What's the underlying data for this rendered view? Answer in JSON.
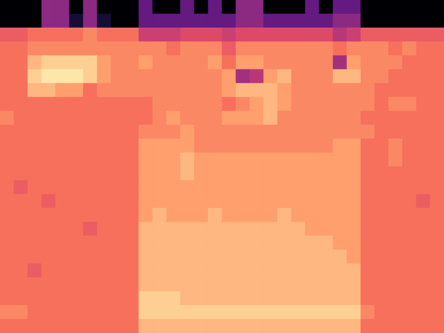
{
  "chart_data": {
    "type": "heatmap",
    "tick_labels": false,
    "grid": false,
    "zlim": [
      0,
      10
    ],
    "cells": [
      [
        0,
        0,
        0,
        4,
        4,
        0,
        4,
        0,
        0,
        0,
        3,
        0,
        0,
        3,
        0,
        3,
        0,
        4,
        4,
        0,
        0,
        0,
        3,
        0,
        3,
        3,
        0,
        0,
        0,
        0,
        0,
        0
      ],
      [
        0,
        0,
        0,
        4,
        4,
        1,
        4,
        1,
        0,
        0,
        3,
        3,
        3,
        3,
        3,
        3,
        3,
        4,
        4,
        3,
        3,
        3,
        3,
        3,
        4,
        4,
        0,
        0,
        0,
        0,
        0,
        0
      ],
      [
        6.5,
        6.5,
        7,
        7,
        7,
        7,
        7.5,
        7,
        7,
        7,
        5.5,
        5.5,
        5.5,
        6,
        6,
        6,
        5.5,
        6,
        6,
        6,
        6,
        6,
        6,
        6,
        5,
        5.5,
        6.5,
        6.5,
        6.5,
        6.5,
        6.5,
        6.5
      ],
      [
        7,
        7,
        7.5,
        7.5,
        7.5,
        7.5,
        7.5,
        7.5,
        7.5,
        7.5,
        7.5,
        7.5,
        7,
        7.5,
        7.5,
        7.5,
        6.5,
        7.5,
        7.5,
        7.5,
        7.5,
        7.5,
        7.5,
        7.5,
        7,
        7.5,
        7.5,
        7.5,
        7,
        7.5,
        7,
        7
      ],
      [
        7,
        7,
        8.5,
        9,
        9,
        9,
        9,
        8,
        7.5,
        7.5,
        8,
        7.5,
        7.5,
        7.5,
        7.5,
        8,
        7,
        8,
        8,
        7.5,
        7.5,
        7.5,
        7.5,
        7.5,
        4.5,
        8,
        7.5,
        7.5,
        7.5,
        7,
        7,
        7
      ],
      [
        7,
        7,
        9,
        9.5,
        9.5,
        9.5,
        9,
        8,
        7.5,
        7.5,
        7.5,
        7.5,
        7.5,
        7.5,
        7.5,
        7.5,
        8,
        4.5,
        5,
        8,
        8.5,
        7.5,
        7.5,
        7.5,
        8.5,
        8.5,
        7.5,
        7.5,
        7,
        7,
        7,
        7
      ],
      [
        7,
        7,
        8.5,
        8.5,
        8,
        8,
        7,
        7.5,
        7.5,
        7.5,
        7.5,
        7.5,
        7.5,
        7.5,
        7.5,
        7.5,
        8,
        8.5,
        8.5,
        8.5,
        8,
        7.5,
        7.5,
        7.5,
        7.5,
        7.5,
        7.5,
        7,
        7,
        7,
        7,
        7
      ],
      [
        7,
        7,
        7,
        7,
        7,
        7,
        7,
        7,
        7,
        7,
        7,
        7.5,
        7.5,
        7.5,
        7.5,
        7.5,
        7,
        7.5,
        8,
        8.5,
        8,
        7.5,
        7.5,
        7.5,
        7.5,
        7.5,
        7.5,
        7,
        7.5,
        7.5,
        7,
        7
      ],
      [
        7.5,
        7,
        7,
        7,
        7,
        7,
        7,
        7,
        7,
        7,
        7,
        7.5,
        8,
        7.5,
        7.5,
        7.5,
        8,
        8,
        8,
        8.5,
        7.5,
        7.5,
        7.5,
        7.5,
        7.5,
        7.5,
        7,
        7,
        7,
        7,
        7,
        7
      ],
      [
        7,
        7,
        7,
        7,
        7,
        7,
        7,
        7,
        7,
        7,
        7.5,
        7.5,
        7.5,
        8,
        7.5,
        7.5,
        7.5,
        7.5,
        7.5,
        7.5,
        7.5,
        7.5,
        7.5,
        7.5,
        7.5,
        7.5,
        7.5,
        7,
        7,
        7,
        7,
        7
      ],
      [
        7,
        7,
        7,
        7,
        7,
        7,
        7,
        7,
        7,
        7,
        8,
        8,
        8,
        8,
        7.5,
        7.5,
        7.5,
        7.5,
        7.5,
        7.5,
        7.5,
        7.5,
        7.5,
        7.5,
        8,
        8,
        7,
        7,
        7.5,
        7,
        7,
        7
      ],
      [
        7,
        7,
        7,
        7,
        7,
        7,
        7,
        7,
        7,
        7,
        8,
        8,
        8,
        8.5,
        8,
        8,
        8,
        8,
        8,
        8,
        8,
        8,
        8,
        8,
        8,
        8,
        7,
        7,
        7.5,
        7,
        7,
        7
      ],
      [
        7,
        7,
        7,
        7,
        7,
        7,
        7,
        7,
        7,
        7,
        8,
        8,
        8,
        8.5,
        8,
        8,
        8,
        8,
        8,
        8,
        8,
        8,
        8,
        8,
        8,
        8,
        7,
        7,
        7,
        7,
        7,
        7
      ],
      [
        7,
        6.5,
        7,
        7,
        7,
        7,
        7,
        7,
        7,
        7,
        8,
        8,
        8,
        8,
        8,
        8,
        8,
        8,
        8,
        8,
        8,
        8,
        8,
        8,
        8,
        8,
        7,
        7,
        7,
        7,
        7,
        7
      ],
      [
        7,
        7,
        7,
        6.5,
        7,
        7,
        7,
        7,
        7,
        7,
        8,
        8,
        8,
        8,
        8,
        8,
        8,
        8,
        8,
        8,
        8,
        8,
        8,
        8,
        8,
        8,
        7,
        7,
        7,
        7,
        6.5,
        7
      ],
      [
        7,
        7,
        7,
        7,
        7,
        7,
        7,
        7,
        7,
        7,
        8,
        8.5,
        8,
        8,
        8,
        8.5,
        8,
        8,
        8,
        8,
        8.5,
        8,
        8,
        8,
        8,
        8,
        7,
        7,
        7,
        7,
        7,
        7
      ],
      [
        7,
        7,
        7,
        7,
        7,
        7,
        6.5,
        7,
        7,
        7,
        8.5,
        8.5,
        8.5,
        8.5,
        8.5,
        8.5,
        8.5,
        8.5,
        8.5,
        8.5,
        8.5,
        8.5,
        8,
        8,
        8,
        8,
        7,
        7,
        7,
        7,
        7,
        7
      ],
      [
        7,
        7,
        7,
        7,
        7,
        7,
        7,
        7,
        7,
        7,
        8.5,
        8.5,
        8.5,
        8.5,
        8.5,
        8.5,
        8.5,
        8.5,
        8.5,
        8.5,
        8.5,
        8.5,
        8.5,
        8.5,
        8,
        8,
        7,
        7,
        7,
        7,
        7,
        7
      ],
      [
        7,
        7,
        7,
        7,
        7,
        7,
        7,
        7,
        7,
        7,
        8.5,
        8.5,
        8.5,
        8.5,
        8.5,
        8.5,
        8.5,
        8.5,
        8.5,
        8.5,
        8.5,
        8.5,
        8.5,
        8.5,
        8.5,
        8,
        7,
        7,
        7,
        7,
        7,
        7
      ],
      [
        7,
        7,
        6.5,
        7,
        7,
        7,
        7,
        7,
        7,
        7,
        8.5,
        8.5,
        8.5,
        8.5,
        8.5,
        8.5,
        8.5,
        8.5,
        8.5,
        8.5,
        8.5,
        8.5,
        8.5,
        8.5,
        8.5,
        8.5,
        7,
        7,
        7,
        7,
        7,
        7
      ],
      [
        7,
        7,
        7,
        7,
        7,
        7,
        7,
        7,
        7,
        7,
        8.5,
        8.5,
        8.5,
        8.5,
        8.5,
        8.5,
        8.5,
        8.5,
        8.5,
        8.5,
        8.5,
        8.5,
        8.5,
        8.5,
        8.5,
        8.5,
        7,
        7,
        7,
        7,
        7,
        7
      ],
      [
        7,
        7,
        7,
        7,
        7,
        7,
        7,
        7,
        7,
        7,
        9,
        9,
        9,
        8.5,
        8.5,
        8.5,
        8.5,
        8.5,
        8.5,
        8.5,
        8.5,
        8.5,
        8.5,
        8.5,
        8.5,
        8.5,
        7,
        7,
        7,
        7,
        7,
        7
      ],
      [
        7.5,
        7.5,
        7,
        7,
        7,
        7,
        7,
        7,
        7,
        7,
        9,
        9,
        9,
        9,
        9,
        9,
        9,
        9,
        9,
        9,
        9,
        9,
        9,
        9,
        9,
        9,
        7.5,
        7,
        7,
        7,
        7,
        7
      ],
      [
        7,
        7,
        7,
        7,
        7,
        7,
        7,
        7,
        7,
        7,
        8.5,
        8.5,
        8.5,
        8.5,
        8.5,
        8.5,
        8.5,
        8.5,
        8.5,
        8.5,
        8.5,
        8.5,
        8.5,
        8.5,
        8.5,
        8.5,
        7,
        7,
        7,
        7,
        7,
        7
      ]
    ]
  }
}
